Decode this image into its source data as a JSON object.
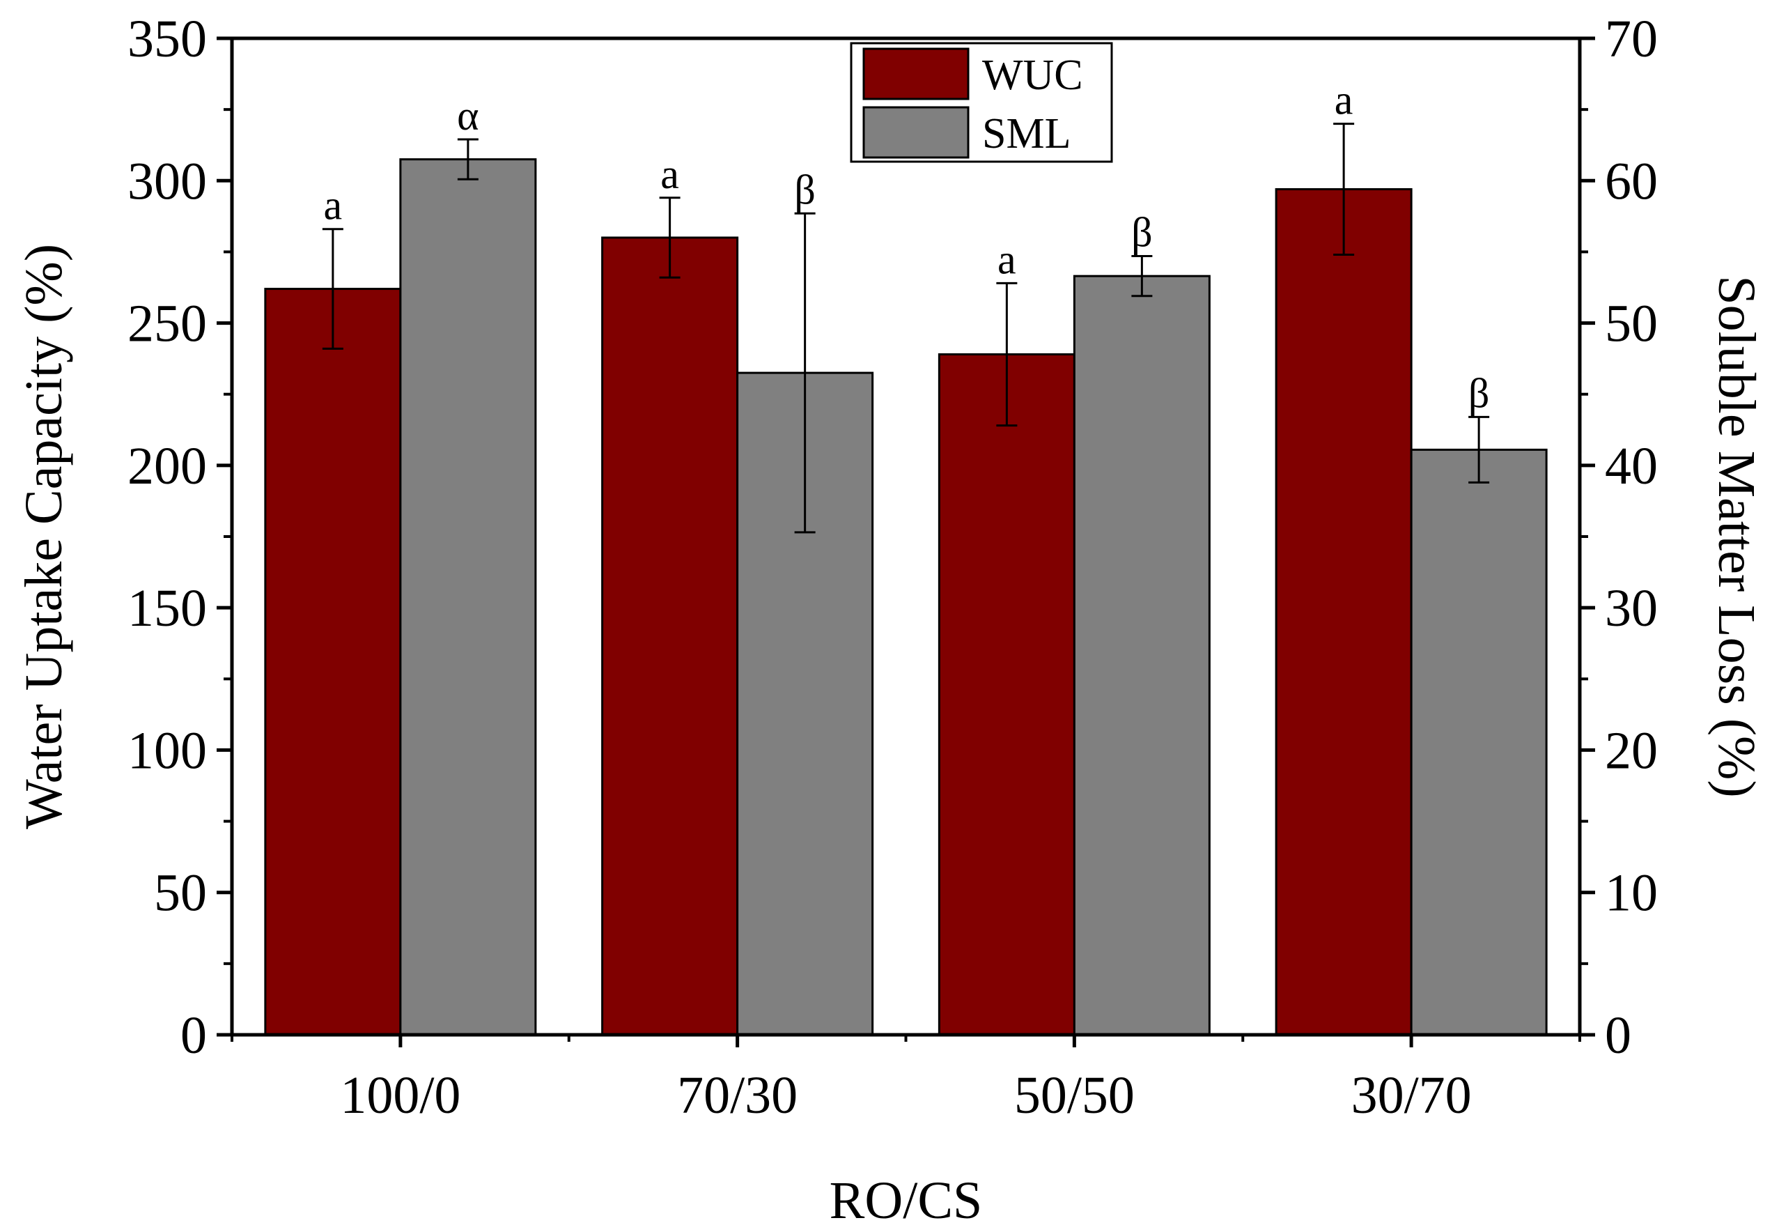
{
  "chart_data": {
    "type": "bar",
    "xlabel": "RO/CS",
    "ylabel": "Water Uptake Capacity (%)",
    "y2label": "Soluble Matter Loss (%)",
    "categories": [
      "100/0",
      "70/30",
      "50/50",
      "30/70"
    ],
    "ylim": [
      0,
      350
    ],
    "y2lim": [
      0,
      70
    ],
    "yticks": [
      0,
      50,
      100,
      150,
      200,
      250,
      300,
      350
    ],
    "y2ticks": [
      0,
      10,
      20,
      30,
      40,
      50,
      60,
      70
    ],
    "legend_position": "top-center",
    "series": [
      {
        "name": "WUC",
        "axis": "left",
        "color": "#800000",
        "values": [
          262,
          280,
          239,
          297
        ],
        "errors": [
          21,
          14,
          25,
          23
        ],
        "labels": [
          "a",
          "a",
          "a",
          "a"
        ]
      },
      {
        "name": "SML",
        "axis": "right",
        "color": "#808080",
        "values": [
          61.5,
          46.5,
          53.3,
          41.1
        ],
        "errors": [
          1.4,
          11.2,
          1.4,
          2.3
        ],
        "labels": [
          "α",
          "β",
          "β",
          "β"
        ]
      }
    ]
  }
}
